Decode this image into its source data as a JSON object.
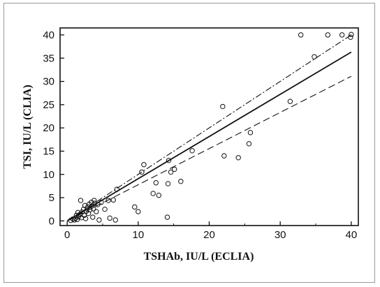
{
  "chart_data": {
    "type": "scatter",
    "xlabel": "TSHAb,  IU/L (ECLIA)",
    "ylabel": "TSI, IU/L (CLIA)",
    "xlim": [
      -1,
      41
    ],
    "ylim": [
      -1,
      41.5
    ],
    "x_ticks": [
      0,
      10,
      20,
      30,
      40
    ],
    "y_ticks": [
      0,
      5,
      10,
      15,
      20,
      25,
      30,
      35,
      40
    ],
    "grid": false,
    "points": [
      [
        0.5,
        0.1
      ],
      [
        0.8,
        0.4
      ],
      [
        1.0,
        0.2
      ],
      [
        1.2,
        0.6
      ],
      [
        1.3,
        1.2
      ],
      [
        1.4,
        0.3
      ],
      [
        1.5,
        1.8
      ],
      [
        1.6,
        0.9
      ],
      [
        1.8,
        1.4
      ],
      [
        1.9,
        4.4
      ],
      [
        2.0,
        0.7
      ],
      [
        2.1,
        1.9
      ],
      [
        2.3,
        2.5
      ],
      [
        2.4,
        1.2
      ],
      [
        2.5,
        3.3
      ],
      [
        2.6,
        0.5
      ],
      [
        2.7,
        2.1
      ],
      [
        2.9,
        3.0
      ],
      [
        3.0,
        1.6
      ],
      [
        3.1,
        3.6
      ],
      [
        3.2,
        2.4
      ],
      [
        3.4,
        4.0
      ],
      [
        3.5,
        3.2
      ],
      [
        3.6,
        0.8
      ],
      [
        3.7,
        2.6
      ],
      [
        3.8,
        4.4
      ],
      [
        3.9,
        3.8
      ],
      [
        4.1,
        2.0
      ],
      [
        4.3,
        3.5
      ],
      [
        4.5,
        0.2
      ],
      [
        4.8,
        4.0
      ],
      [
        5.3,
        2.5
      ],
      [
        5.8,
        4.4
      ],
      [
        6.0,
        0.6
      ],
      [
        6.5,
        4.5
      ],
      [
        6.8,
        0.2
      ],
      [
        7.0,
        6.8
      ],
      [
        9.5,
        3.0
      ],
      [
        10.0,
        2.0
      ],
      [
        10.5,
        10.5
      ],
      [
        10.8,
        12.1
      ],
      [
        12.1,
        5.9
      ],
      [
        12.5,
        8.2
      ],
      [
        12.9,
        5.5
      ],
      [
        14.1,
        0.8
      ],
      [
        14.3,
        13.0
      ],
      [
        14.2,
        8.0
      ],
      [
        14.6,
        10.5
      ],
      [
        15.1,
        11.1
      ],
      [
        16.0,
        8.5
      ],
      [
        17.6,
        15.1
      ],
      [
        21.9,
        24.6
      ],
      [
        22.1,
        14.0
      ],
      [
        24.1,
        13.6
      ],
      [
        25.6,
        16.6
      ],
      [
        25.8,
        19.0
      ],
      [
        31.4,
        25.7
      ],
      [
        32.9,
        40.0
      ],
      [
        34.8,
        35.3
      ],
      [
        36.7,
        40.0
      ],
      [
        38.7,
        40.0
      ],
      [
        39.9,
        39.5
      ],
      [
        40.0,
        40.1
      ]
    ],
    "lines": [
      {
        "style": "solid",
        "from": [
          0,
          0
        ],
        "to": [
          40,
          36.3
        ]
      },
      {
        "style": "dash-dot",
        "from": [
          0,
          0
        ],
        "to": [
          40,
          40
        ]
      },
      {
        "style": "dashed",
        "from": [
          0,
          0
        ],
        "to": [
          40,
          31.1
        ]
      }
    ]
  }
}
